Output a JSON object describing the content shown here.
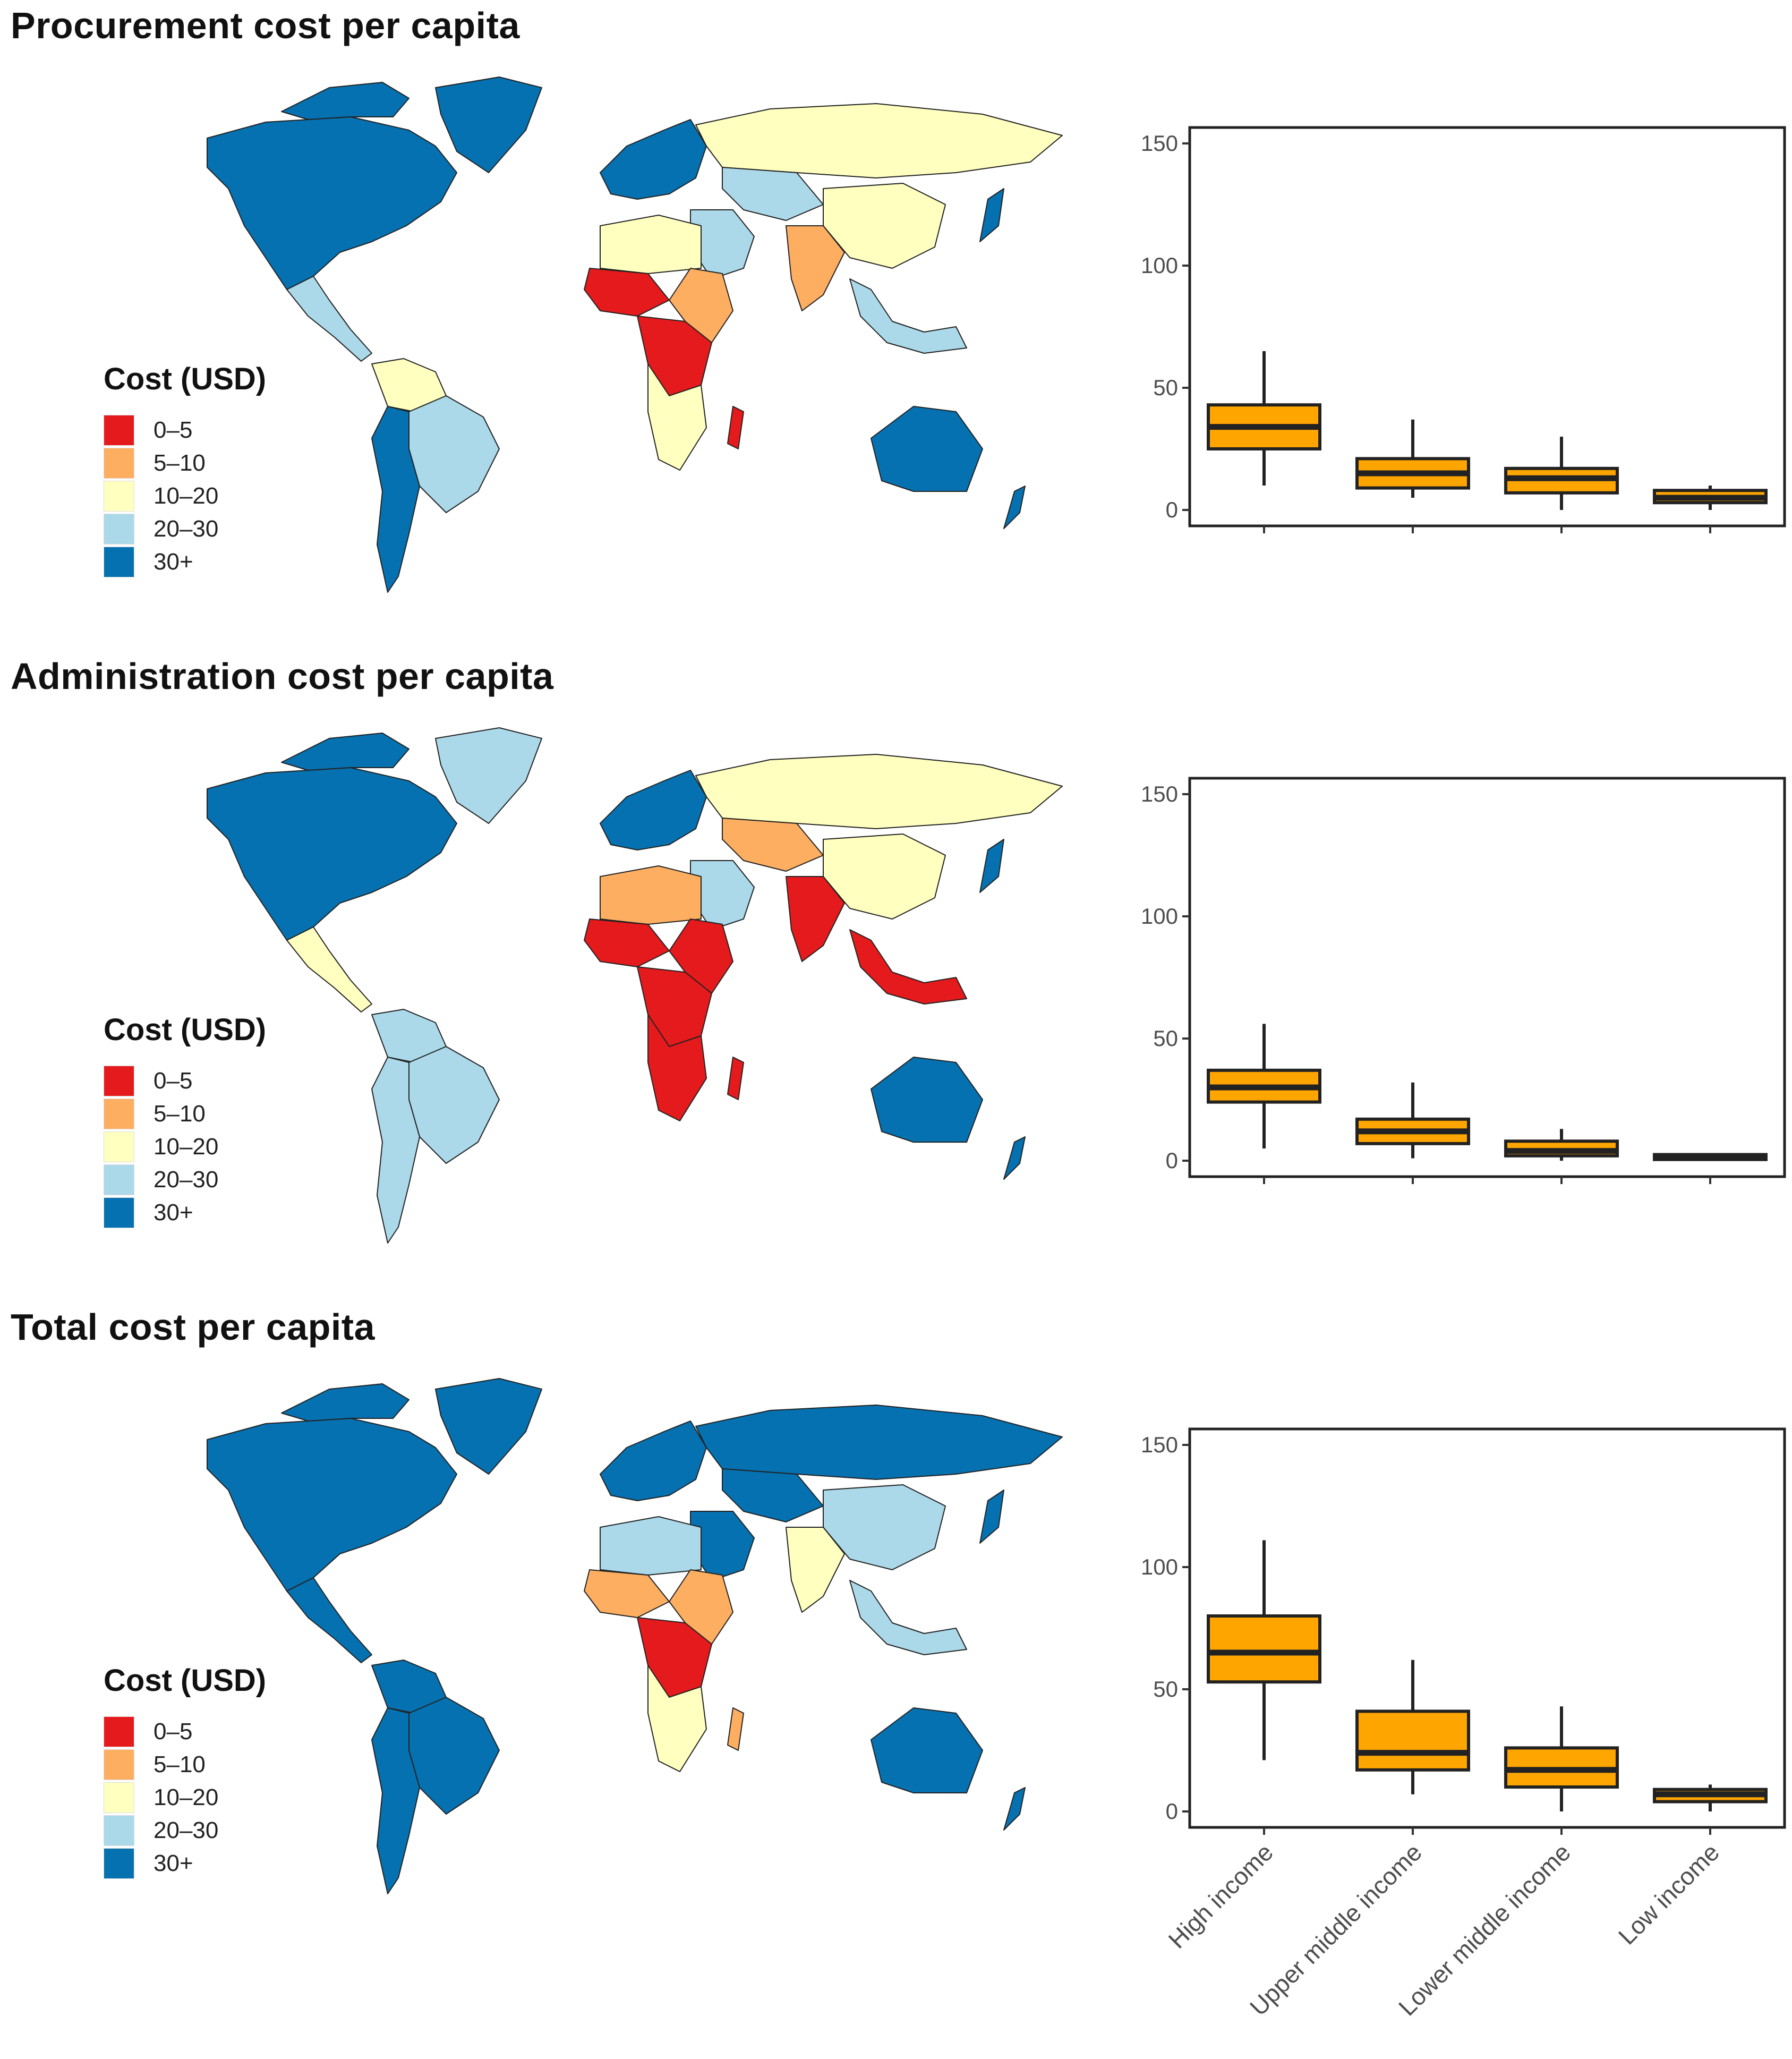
{
  "colors": {
    "c0_5": "#e41a1c",
    "c5_10": "#fdae61",
    "c10_20": "#ffffbf",
    "c20_30": "#abd9e9",
    "c30plus": "#0571b0",
    "box_fill": "#ffa500",
    "box_stroke": "#222222"
  },
  "legend": {
    "title": "Cost (USD)",
    "items": [
      {
        "label": "0–5",
        "color": "#e41a1c"
      },
      {
        "label": "5–10",
        "color": "#fdae61"
      },
      {
        "label": "10–20",
        "color": "#ffffbf"
      },
      {
        "label": "20–30",
        "color": "#abd9e9"
      },
      {
        "label": "30+",
        "color": "#0571b0"
      }
    ]
  },
  "panels": [
    {
      "title": "Procurement cost per capita"
    },
    {
      "title": "Administration cost per capita"
    },
    {
      "title": "Total cost per capita"
    }
  ],
  "chart_data": [
    {
      "type": "boxplot",
      "title": "Procurement cost per capita",
      "categories": [
        "High income",
        "Upper middle income",
        "Lower middle income",
        "Low income"
      ],
      "ylim": [
        0,
        150
      ],
      "yticks": [
        0,
        50,
        100,
        150
      ],
      "boxes": [
        {
          "min": 10,
          "q1": 25,
          "median": 34,
          "q3": 43,
          "max": 65
        },
        {
          "min": 5,
          "q1": 9,
          "median": 15,
          "q3": 21,
          "max": 37
        },
        {
          "min": 0,
          "q1": 7,
          "median": 13,
          "q3": 17,
          "max": 30
        },
        {
          "min": 0,
          "q1": 3,
          "median": 5,
          "q3": 8,
          "max": 10
        }
      ],
      "map_legend_title": "Cost (USD)"
    },
    {
      "type": "boxplot",
      "title": "Administration cost per capita",
      "categories": [
        "High income",
        "Upper middle income",
        "Lower middle income",
        "Low income"
      ],
      "ylim": [
        0,
        150
      ],
      "yticks": [
        0,
        50,
        100,
        150
      ],
      "boxes": [
        {
          "min": 5,
          "q1": 24,
          "median": 30,
          "q3": 37,
          "max": 56
        },
        {
          "min": 1,
          "q1": 7,
          "median": 12,
          "q3": 17,
          "max": 32
        },
        {
          "min": 0,
          "q1": 2,
          "median": 4,
          "q3": 8,
          "max": 13
        },
        {
          "min": 0,
          "q1": 0.5,
          "median": 1.5,
          "q3": 2.5,
          "max": 3
        }
      ],
      "map_legend_title": "Cost (USD)"
    },
    {
      "type": "boxplot",
      "title": "Total cost per capita",
      "categories": [
        "High income",
        "Upper middle income",
        "Lower middle income",
        "Low income"
      ],
      "ylim": [
        0,
        150
      ],
      "yticks": [
        0,
        50,
        100,
        150
      ],
      "boxes": [
        {
          "min": 21,
          "q1": 53,
          "median": 65,
          "q3": 80,
          "max": 111
        },
        {
          "min": 7,
          "q1": 17,
          "median": 24,
          "q3": 41,
          "max": 62
        },
        {
          "min": 0,
          "q1": 10,
          "median": 17,
          "q3": 26,
          "max": 43
        },
        {
          "min": 0,
          "q1": 4,
          "median": 7,
          "q3": 9,
          "max": 11
        }
      ],
      "map_legend_title": "Cost (USD)"
    }
  ]
}
